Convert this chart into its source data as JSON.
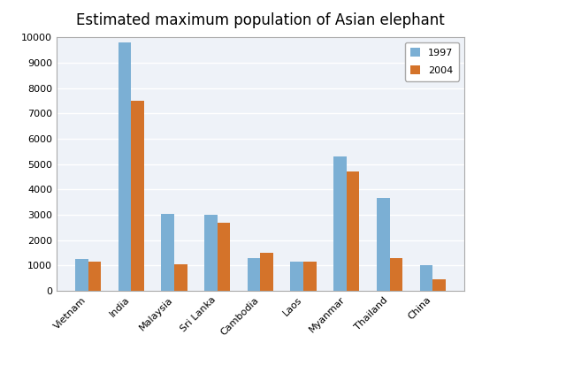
{
  "title": "Estimated maximum population of Asian elephant",
  "categories": [
    "Vietnam",
    "India",
    "Malaysia",
    "Sri Lanka",
    "Cambodia",
    "Laos",
    "Myanmar",
    "Thailand",
    "China"
  ],
  "values_1997": [
    1250,
    9800,
    3050,
    3000,
    1300,
    1150,
    5300,
    3650,
    1000
  ],
  "values_2004": [
    1150,
    7500,
    1050,
    2700,
    1500,
    1150,
    4700,
    1300,
    450
  ],
  "color_1997": "#7BAFD4",
  "color_2004": "#D4732A",
  "ylim": [
    0,
    10000
  ],
  "yticks": [
    0,
    1000,
    2000,
    3000,
    4000,
    5000,
    6000,
    7000,
    8000,
    9000,
    10000
  ],
  "legend_labels": [
    "1997",
    "2004"
  ],
  "bar_width": 0.3,
  "plot_bg_color": "#EEF2F8",
  "fig_bg_color": "#FFFFFF",
  "grid_color": "#FFFFFF",
  "title_fontsize": 12,
  "tick_fontsize": 8,
  "border_color": "#AAAAAA"
}
